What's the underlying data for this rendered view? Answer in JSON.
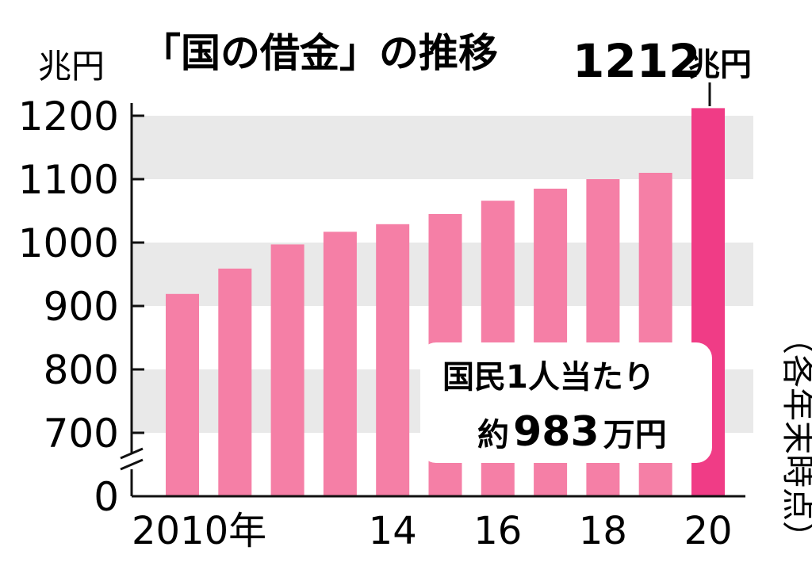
{
  "chart_data": {
    "type": "bar",
    "title": "「国の借金」の推移",
    "unit_label": "兆円",
    "categories": [
      "2010",
      "2011",
      "2012",
      "2013",
      "2014",
      "2015",
      "2016",
      "2017",
      "2018",
      "2019",
      "2020"
    ],
    "values": [
      919,
      959,
      997,
      1017,
      1029,
      1045,
      1066,
      1085,
      1100,
      1110,
      1212
    ],
    "x_tick_labels": [
      "2010年",
      "",
      "",
      "",
      "14",
      "",
      "16",
      "",
      "18",
      "",
      "20"
    ],
    "y_ticks": [
      0,
      700,
      800,
      900,
      1000,
      1100,
      1200
    ],
    "y_tick_labels": [
      "0",
      "700",
      "800",
      "900",
      "1000",
      "1100",
      "1200"
    ],
    "y_axis_break": "0 to 650",
    "grid": "alternating horizontal bands",
    "highlight_index": 10,
    "callout": {
      "value": "1212",
      "unit": "兆円"
    },
    "note": {
      "line1": "国民1人当たり",
      "prefix": "約",
      "value": "983",
      "suffix": "万円"
    },
    "side_note": "（各年末時点）",
    "colors": {
      "bar": "#f57fa6",
      "bar_highlight": "#f03c86",
      "band": "#e9e9e9",
      "axis": "#111111"
    }
  }
}
